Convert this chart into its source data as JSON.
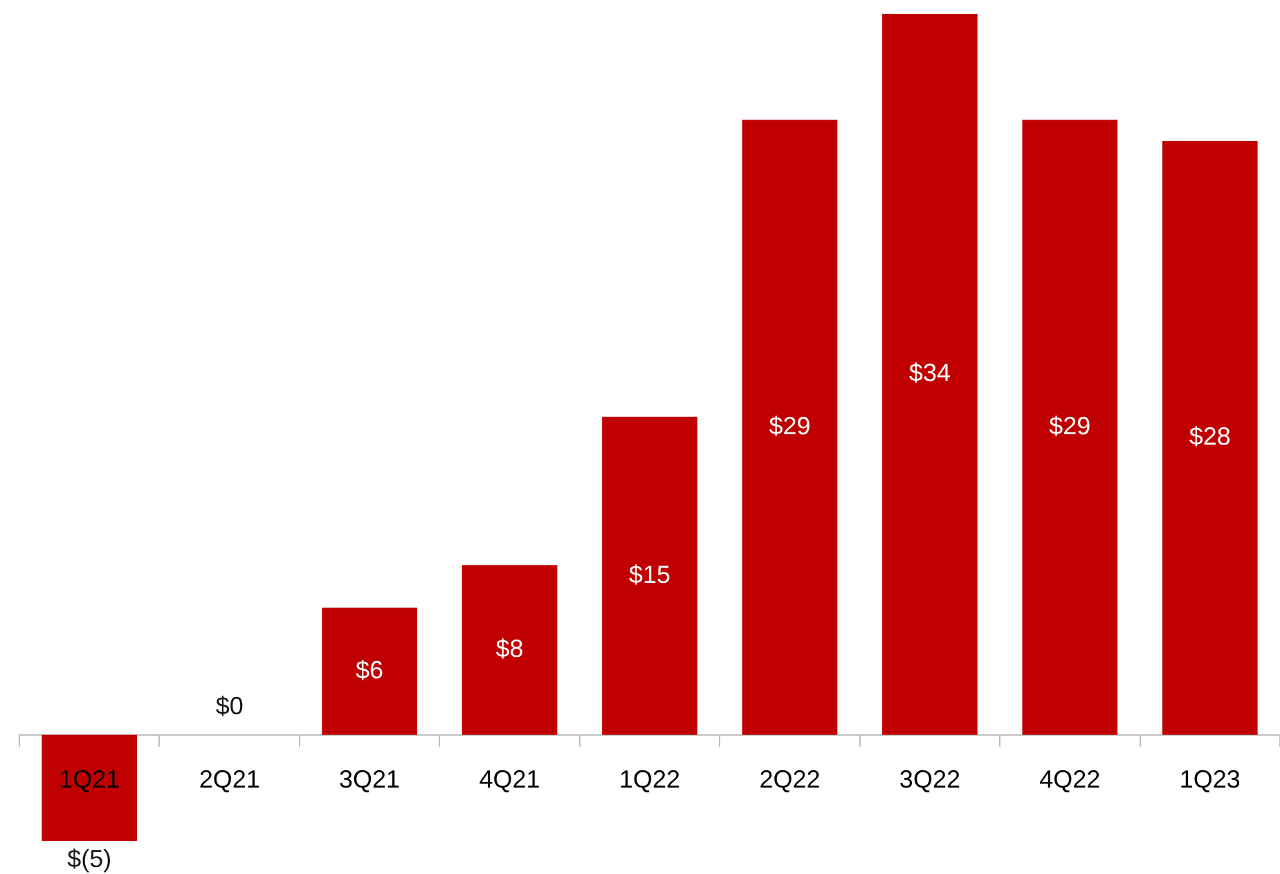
{
  "chart_data": {
    "type": "bar",
    "categories": [
      "1Q21",
      "2Q21",
      "3Q21",
      "4Q21",
      "1Q22",
      "2Q22",
      "3Q22",
      "4Q22",
      "1Q23"
    ],
    "values": [
      -5,
      0,
      6,
      8,
      15,
      29,
      34,
      29,
      28
    ],
    "value_labels": [
      "$(5)",
      "$0",
      "$6",
      "$8",
      "$15",
      "$29",
      "$34",
      "$29",
      "$28"
    ],
    "color": "#c00000",
    "grid": false,
    "legend": false
  }
}
